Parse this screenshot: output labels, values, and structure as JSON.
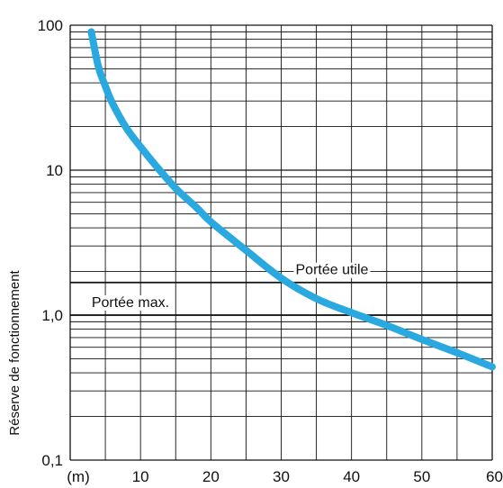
{
  "chart_data": {
    "type": "line",
    "title": "",
    "xlabel": "",
    "ylabel": "Réserve de fonctionnement",
    "x_unit_label": "(m)",
    "xlim": [
      0,
      60
    ],
    "ylim": [
      0.1,
      100
    ],
    "y_scale": "log",
    "grid": true,
    "x_ticks": [
      10,
      20,
      30,
      40,
      50,
      60
    ],
    "x_tick_labels": [
      "10",
      "20",
      "30",
      "40",
      "50",
      "60"
    ],
    "y_ticks": [
      0.1,
      1,
      10,
      100
    ],
    "y_tick_labels": [
      "0,1",
      "1,0",
      "10",
      "100"
    ],
    "series": [
      {
        "color": "#2aa8e0",
        "x": [
          3,
          4,
          5,
          6,
          8,
          10,
          12,
          15,
          18,
          20,
          25,
          30,
          35,
          40,
          45,
          50,
          55,
          60
        ],
        "y": [
          90,
          52,
          38,
          29,
          19.5,
          14.5,
          11,
          7.5,
          5.5,
          4.4,
          2.8,
          1.8,
          1.3,
          1.04,
          0.85,
          0.68,
          0.55,
          0.44
        ]
      }
    ],
    "reference_lines": [
      {
        "label": "Portée utile",
        "y": 1.68,
        "label_x": 30
      },
      {
        "label": "Portée max.",
        "y": 1.0,
        "label_x": 1
      }
    ]
  }
}
